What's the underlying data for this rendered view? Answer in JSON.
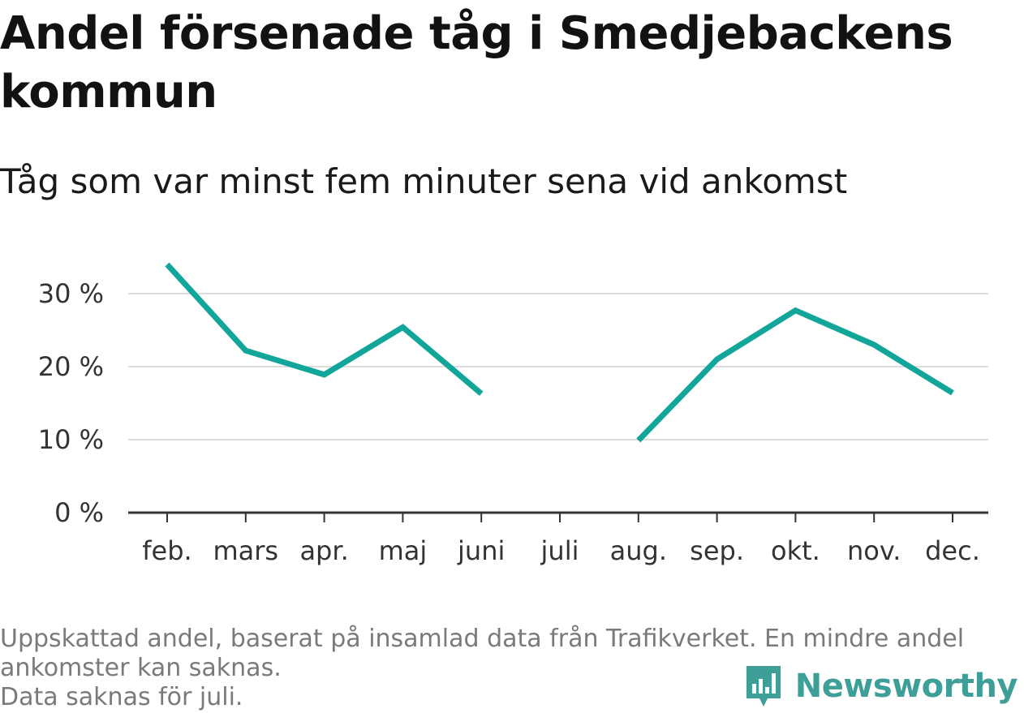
{
  "title": "Andel försenade tåg i Smedjebackens kommun",
  "subtitle": "Tåg som var minst fem minuter sena vid ankomst",
  "footnote": {
    "line1": "Uppskattad andel, baserat på insamlad data från Trafikverket. En mindre andel ankomster kan saknas.",
    "line2": "Data saknas för juli."
  },
  "brand": {
    "name": "Newsworthy",
    "icon": "bar-chart-speech-bubble-icon",
    "color": "#3e9e98"
  },
  "colors": {
    "line": "#12a59a",
    "grid": "#dddddd",
    "axis": "#333333"
  },
  "chart_data": {
    "type": "line",
    "categories": [
      "feb.",
      "mars",
      "apr.",
      "maj",
      "juni",
      "juli",
      "aug.",
      "sep.",
      "okt.",
      "nov.",
      "dec."
    ],
    "series": [
      {
        "values": [
          34,
          22.2,
          18.9,
          25.4,
          16.3,
          null,
          9.9,
          21,
          27.7,
          23,
          16.4
        ]
      }
    ],
    "y_ticks": [
      0,
      10,
      20,
      30
    ],
    "y_tick_labels": [
      "0 %",
      "10 %",
      "20 %",
      "30 %"
    ],
    "ylim": [
      0,
      36
    ],
    "grid": true,
    "xlabel": "",
    "ylabel": ""
  }
}
